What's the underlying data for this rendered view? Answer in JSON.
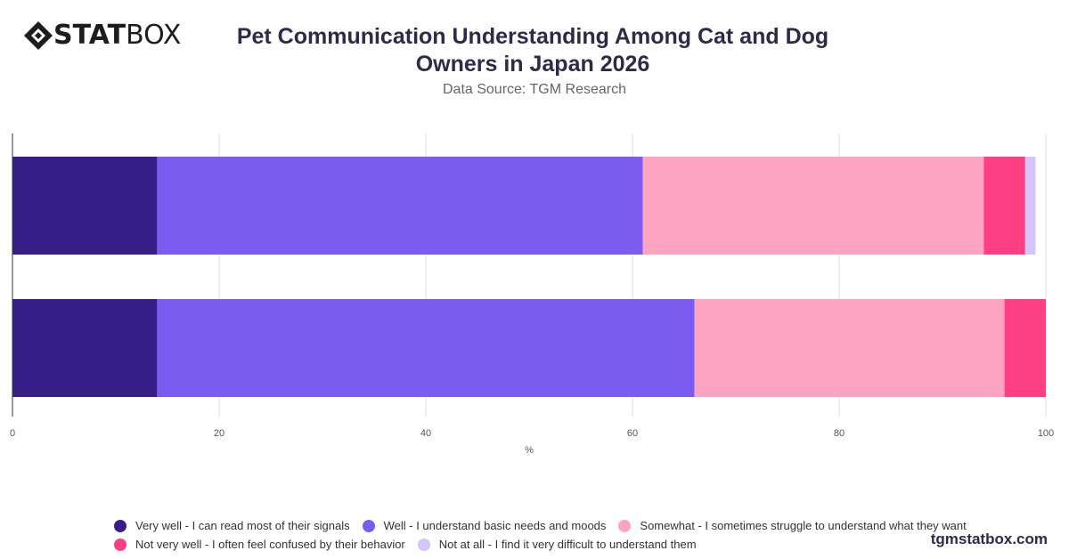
{
  "brand": {
    "logo_stat": "STAT",
    "logo_box": "BOX",
    "watermark": "tgmstatbox.com"
  },
  "chart_data": {
    "type": "bar",
    "orientation": "horizontal",
    "stacked": true,
    "title": "Pet Communication Understanding Among Cat and Dog Owners in Japan 2026",
    "subtitle": "Data Source: TGM Research",
    "xlabel": "%",
    "ylabel": "",
    "xlim": [
      0,
      100
    ],
    "xticks": [
      0,
      20,
      40,
      60,
      80,
      100
    ],
    "categories": [
      "",
      ""
    ],
    "grid": "vertical",
    "legend_position": "bottom",
    "series": [
      {
        "name": "Very well - I can read most of their signals",
        "color": "#371e87",
        "values": [
          14,
          14
        ]
      },
      {
        "name": "Well - I understand basic needs and moods",
        "color": "#7b5cf0",
        "values": [
          47,
          52
        ]
      },
      {
        "name": "Somewhat - I sometimes struggle to understand what they want",
        "color": "#ffa3c3",
        "values": [
          33,
          30
        ]
      },
      {
        "name": "Not very well - I often feel confused by their behavior",
        "color": "#ff3f84",
        "values": [
          4,
          4
        ]
      },
      {
        "name": "Not at all - I find it very difficult to understand them",
        "color": "#d4c4fa",
        "values": [
          1,
          0
        ]
      }
    ]
  }
}
